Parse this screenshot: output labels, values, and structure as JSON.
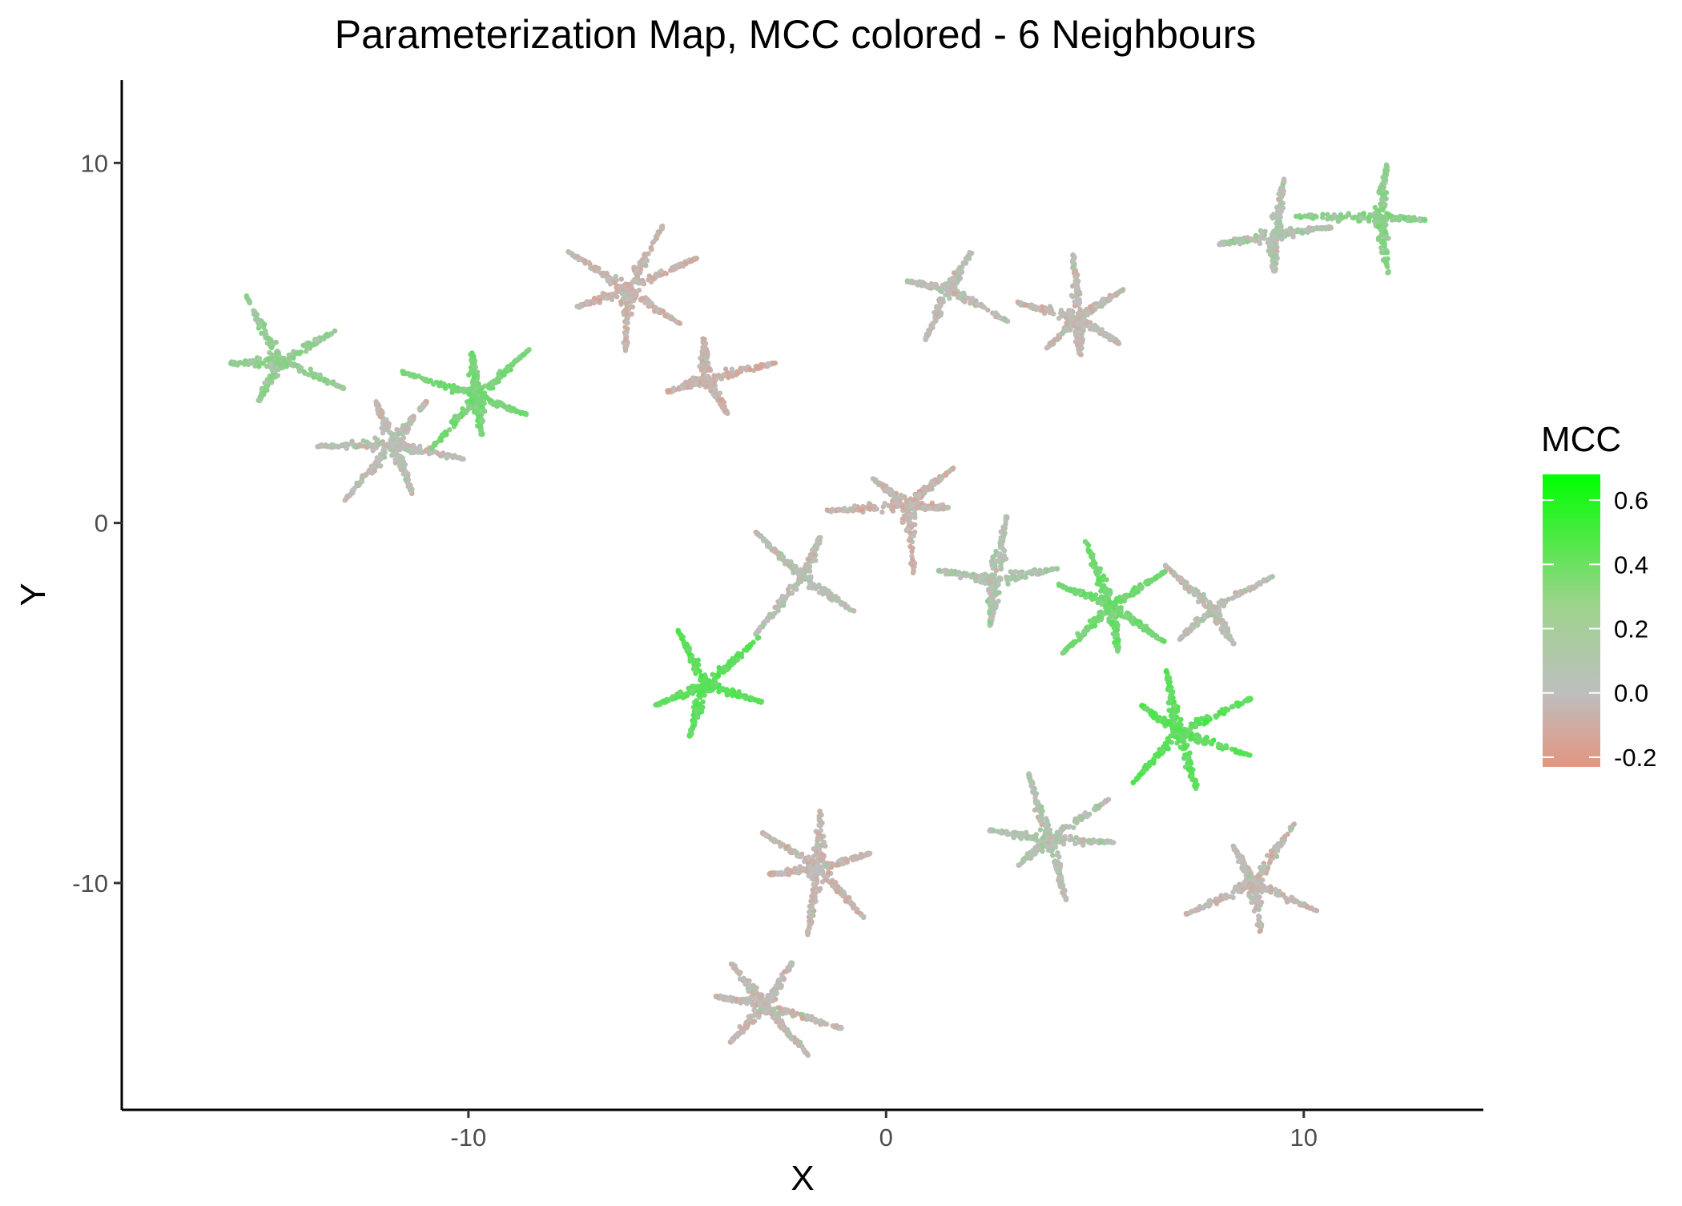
{
  "chart_data": {
    "type": "scatter",
    "title": "Parameterization Map, MCC colored - 6 Neighbours",
    "xlabel": "X",
    "ylabel": "Y",
    "xlim": [
      -18.3,
      14.3
    ],
    "ylim": [
      -16.3,
      12.3
    ],
    "x_ticks": [
      -10,
      0,
      10
    ],
    "x_tick_labels": [
      "-10",
      "0",
      "10"
    ],
    "y_ticks": [
      10,
      0,
      -10
    ],
    "y_tick_labels": [
      "10",
      "0",
      "-10"
    ],
    "grid": false,
    "legend": {
      "title": "MCC",
      "position": "right",
      "ticks": [
        0.6,
        0.4,
        0.2,
        0.0,
        -0.2
      ],
      "tick_labels": [
        "0.6",
        "0.4",
        "0.2",
        "0.0",
        "-0.2"
      ],
      "range": [
        -0.23,
        0.68
      ],
      "colors": {
        "low": "#e3957f",
        "mid": "#bebebe",
        "high": "#00ff00"
      }
    },
    "clusters": [
      {
        "x": -14.5,
        "y": 4.5,
        "mcc": 0.15
      },
      {
        "x": -11.8,
        "y": 2.2,
        "mcc": 0.0
      },
      {
        "x": -9.8,
        "y": 3.5,
        "mcc": 0.25
      },
      {
        "x": -6.2,
        "y": 6.5,
        "mcc": -0.05
      },
      {
        "x": -4.3,
        "y": 4.0,
        "mcc": -0.08
      },
      {
        "x": 1.5,
        "y": 6.5,
        "mcc": 0.0
      },
      {
        "x": 4.6,
        "y": 5.7,
        "mcc": -0.02
      },
      {
        "x": 9.3,
        "y": 8.0,
        "mcc": 0.05
      },
      {
        "x": 11.8,
        "y": 8.5,
        "mcc": 0.18
      },
      {
        "x": 0.5,
        "y": 0.5,
        "mcc": -0.05
      },
      {
        "x": -2.0,
        "y": -1.5,
        "mcc": 0.02
      },
      {
        "x": -4.3,
        "y": -4.5,
        "mcc": 0.35
      },
      {
        "x": 2.6,
        "y": -1.6,
        "mcc": 0.05
      },
      {
        "x": 5.4,
        "y": -2.3,
        "mcc": 0.28
      },
      {
        "x": 7.8,
        "y": -2.4,
        "mcc": 0.0
      },
      {
        "x": 7.0,
        "y": -5.8,
        "mcc": 0.35
      },
      {
        "x": -1.6,
        "y": -9.6,
        "mcc": -0.03
      },
      {
        "x": 3.9,
        "y": -8.8,
        "mcc": 0.04
      },
      {
        "x": 8.8,
        "y": -10.0,
        "mcc": -0.02
      },
      {
        "x": -2.9,
        "y": -13.4,
        "mcc": -0.02
      }
    ]
  }
}
